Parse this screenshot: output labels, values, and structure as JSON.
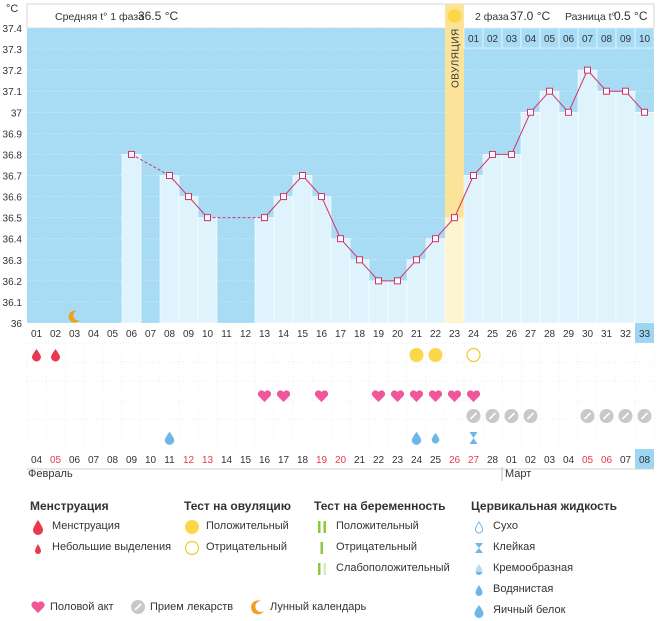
{
  "header": {
    "unit_label": "°C",
    "phase1_label": "Средняя t° 1 фаза",
    "phase1_value": "36.5 °C",
    "phase2_label": "2 фаза",
    "phase2_value": "37.0 °C",
    "diff_label": "Разница t°",
    "diff_value": "0.5 °C",
    "ovulation_label": "ОВУЛЯЦИЯ"
  },
  "colors": {
    "phase1_bg": "#a8dcf5",
    "phase2_bg": "#a8dcf5",
    "ovulation": "#fbe49a",
    "bar_fill": "#dff3fc",
    "line": "#d0336a",
    "menstruation": "#e8394f",
    "heart": "#f0579a",
    "pill": "#c8c8c8",
    "moon": "#f0a020",
    "fluid": "#6fb6e6",
    "test_positive": "#fad84a",
    "highlight_cell": "#9dd6f2"
  },
  "y_ticks": [
    "37.4",
    "37.3",
    "37.2",
    "37.1",
    "37",
    "36.9",
    "36.8",
    "36.7",
    "36.6",
    "36.5",
    "36.4",
    "36.3",
    "36.2",
    "36.1",
    "36"
  ],
  "cycle_days": [
    "01",
    "02",
    "03",
    "04",
    "05",
    "06",
    "07",
    "08",
    "09",
    "10",
    "11",
    "12",
    "13",
    "14",
    "15",
    "16",
    "17",
    "18",
    "19",
    "20",
    "21",
    "22",
    "23",
    "24",
    "25",
    "26",
    "27",
    "28",
    "29",
    "30",
    "31",
    "32",
    "33"
  ],
  "phase2_days": [
    "01",
    "02",
    "03",
    "04",
    "05",
    "06",
    "07",
    "08",
    "09",
    "10"
  ],
  "dates": [
    "04",
    "05",
    "06",
    "07",
    "08",
    "09",
    "10",
    "11",
    "12",
    "13",
    "14",
    "15",
    "16",
    "17",
    "18",
    "19",
    "20",
    "21",
    "22",
    "23",
    "24",
    "25",
    "26",
    "27",
    "28",
    "01",
    "02",
    "03",
    "04",
    "05",
    "06",
    "07",
    "08"
  ],
  "date_red": [
    false,
    true,
    false,
    false,
    false,
    false,
    false,
    false,
    true,
    true,
    false,
    false,
    false,
    false,
    false,
    true,
    true,
    false,
    false,
    false,
    false,
    false,
    true,
    true,
    false,
    false,
    false,
    false,
    false,
    true,
    true,
    false,
    false
  ],
  "month_feb": "Февраль",
  "month_mar": "Март",
  "chart_data": {
    "type": "line",
    "title": "",
    "ylabel": "°C",
    "ylim": [
      36.0,
      37.4
    ],
    "x": [
      1,
      2,
      3,
      4,
      5,
      6,
      7,
      8,
      9,
      10,
      11,
      12,
      13,
      14,
      15,
      16,
      17,
      18,
      19,
      20,
      21,
      22,
      23,
      24,
      25,
      26,
      27,
      28,
      29,
      30,
      31,
      32,
      33
    ],
    "series": [
      {
        "values": [
          null,
          null,
          null,
          null,
          null,
          36.8,
          null,
          36.7,
          36.6,
          36.5,
          null,
          null,
          36.5,
          36.6,
          36.7,
          36.6,
          36.4,
          36.3,
          36.2,
          36.2,
          36.3,
          36.4,
          36.5,
          36.7,
          36.8,
          36.8,
          37.0,
          37.1,
          37.0,
          37.2,
          37.1,
          37.1,
          37.0
        ]
      }
    ],
    "ovulation_day": 23,
    "phase1_mean": 36.5,
    "phase2_mean": 37.0,
    "difference": 0.5
  },
  "markers": {
    "moon_days": [
      3
    ],
    "menstruation_days": [
      1,
      2
    ],
    "ovulation_test_positive_days": [
      21,
      22
    ],
    "ovulation_test_negative_days": [
      24
    ],
    "heart_days": [
      13,
      14,
      16,
      19,
      20,
      21,
      22,
      23,
      24
    ],
    "pill_days": [
      24,
      25,
      26,
      27,
      30,
      31,
      32,
      33
    ],
    "fluid_drop_days": [
      8,
      21,
      22
    ],
    "fluid_drop_small_days": [
      22
    ],
    "fluid_sticky_days": [
      24
    ]
  },
  "legend": {
    "menstruation": {
      "title": "Менструация",
      "items": [
        "Менструация",
        "Небольшие выделения"
      ]
    },
    "ovulation_test": {
      "title": "Тест на овуляцию",
      "items": [
        "Положительный",
        "Отрицательный"
      ]
    },
    "pregnancy_test": {
      "title": "Тест на беременность",
      "items": [
        "Положительный",
        "Отрицательный",
        "Слабоположительный"
      ]
    },
    "cervical": {
      "title": "Цервикальная жидкость",
      "items": [
        "Сухо",
        "Клейкая",
        "Кремообразная",
        "Водянистая",
        "Яичный белок"
      ]
    },
    "bottom": [
      "Половой акт",
      "Прием лекарств",
      "Лунный календарь"
    ]
  }
}
